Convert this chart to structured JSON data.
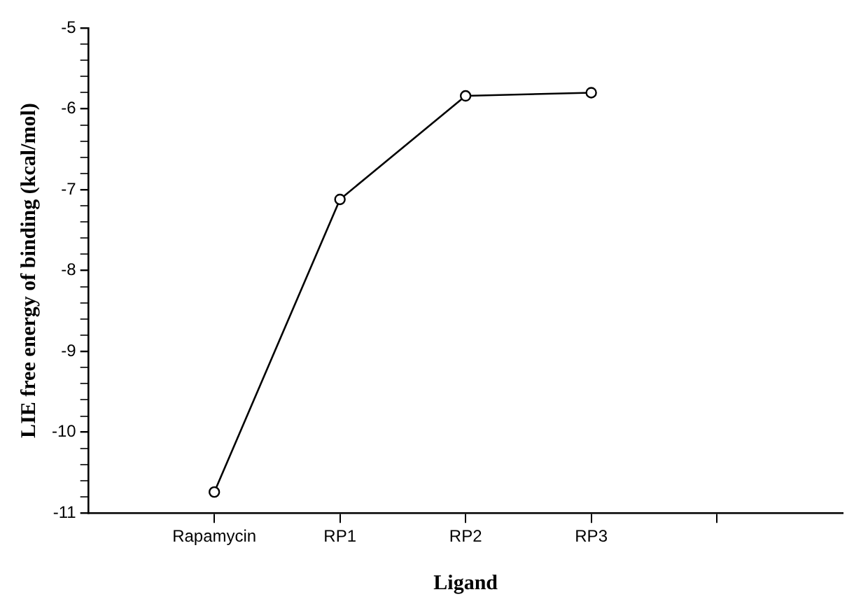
{
  "chart_data": {
    "type": "line",
    "xlabel": "Ligand",
    "ylabel": "LIE free energy of binding (kcal/mol)",
    "categories": [
      null,
      "Rapamycin",
      "RP1",
      "RP2",
      "RP3",
      null,
      null
    ],
    "series": [
      {
        "color": "#000000",
        "values": [
          null,
          -10.74,
          -7.12,
          -5.84,
          -5.8,
          null,
          null
        ]
      }
    ],
    "ylim": [
      -11,
      -5
    ],
    "yticks": [
      -11,
      {
        "value": -10.8,
        "label": null
      },
      {
        "value": -10.6,
        "label": null
      },
      {
        "value": -10.4,
        "label": null
      },
      {
        "value": -10.2,
        "label": null
      },
      -10,
      {
        "value": -9.8,
        "label": null
      },
      {
        "value": -9.6,
        "label": null
      },
      {
        "value": -9.4,
        "label": null
      },
      {
        "value": -9.2,
        "label": null
      },
      -9,
      {
        "value": -8.8,
        "label": null
      },
      {
        "value": -8.6,
        "label": null
      },
      {
        "value": -8.4,
        "label": null
      },
      {
        "value": -8.2,
        "label": null
      },
      -8,
      {
        "value": -7.8,
        "label": null
      },
      {
        "value": -7.6,
        "label": null
      },
      {
        "value": -7.4,
        "label": null
      },
      {
        "value": -7.2,
        "label": null
      },
      -7,
      {
        "value": -6.8,
        "label": null
      },
      {
        "value": -6.6,
        "label": null
      },
      {
        "value": -6.4,
        "label": null
      },
      {
        "value": -6.2,
        "label": null
      },
      -6,
      {
        "value": -5.8,
        "label": null
      },
      {
        "value": -5.6,
        "label": null
      },
      {
        "value": -5.4,
        "label": null
      },
      {
        "value": -5.2,
        "label": null
      },
      -5
    ],
    "grid": false,
    "legend": false,
    "marker": "circle",
    "line_style": "solid"
  }
}
